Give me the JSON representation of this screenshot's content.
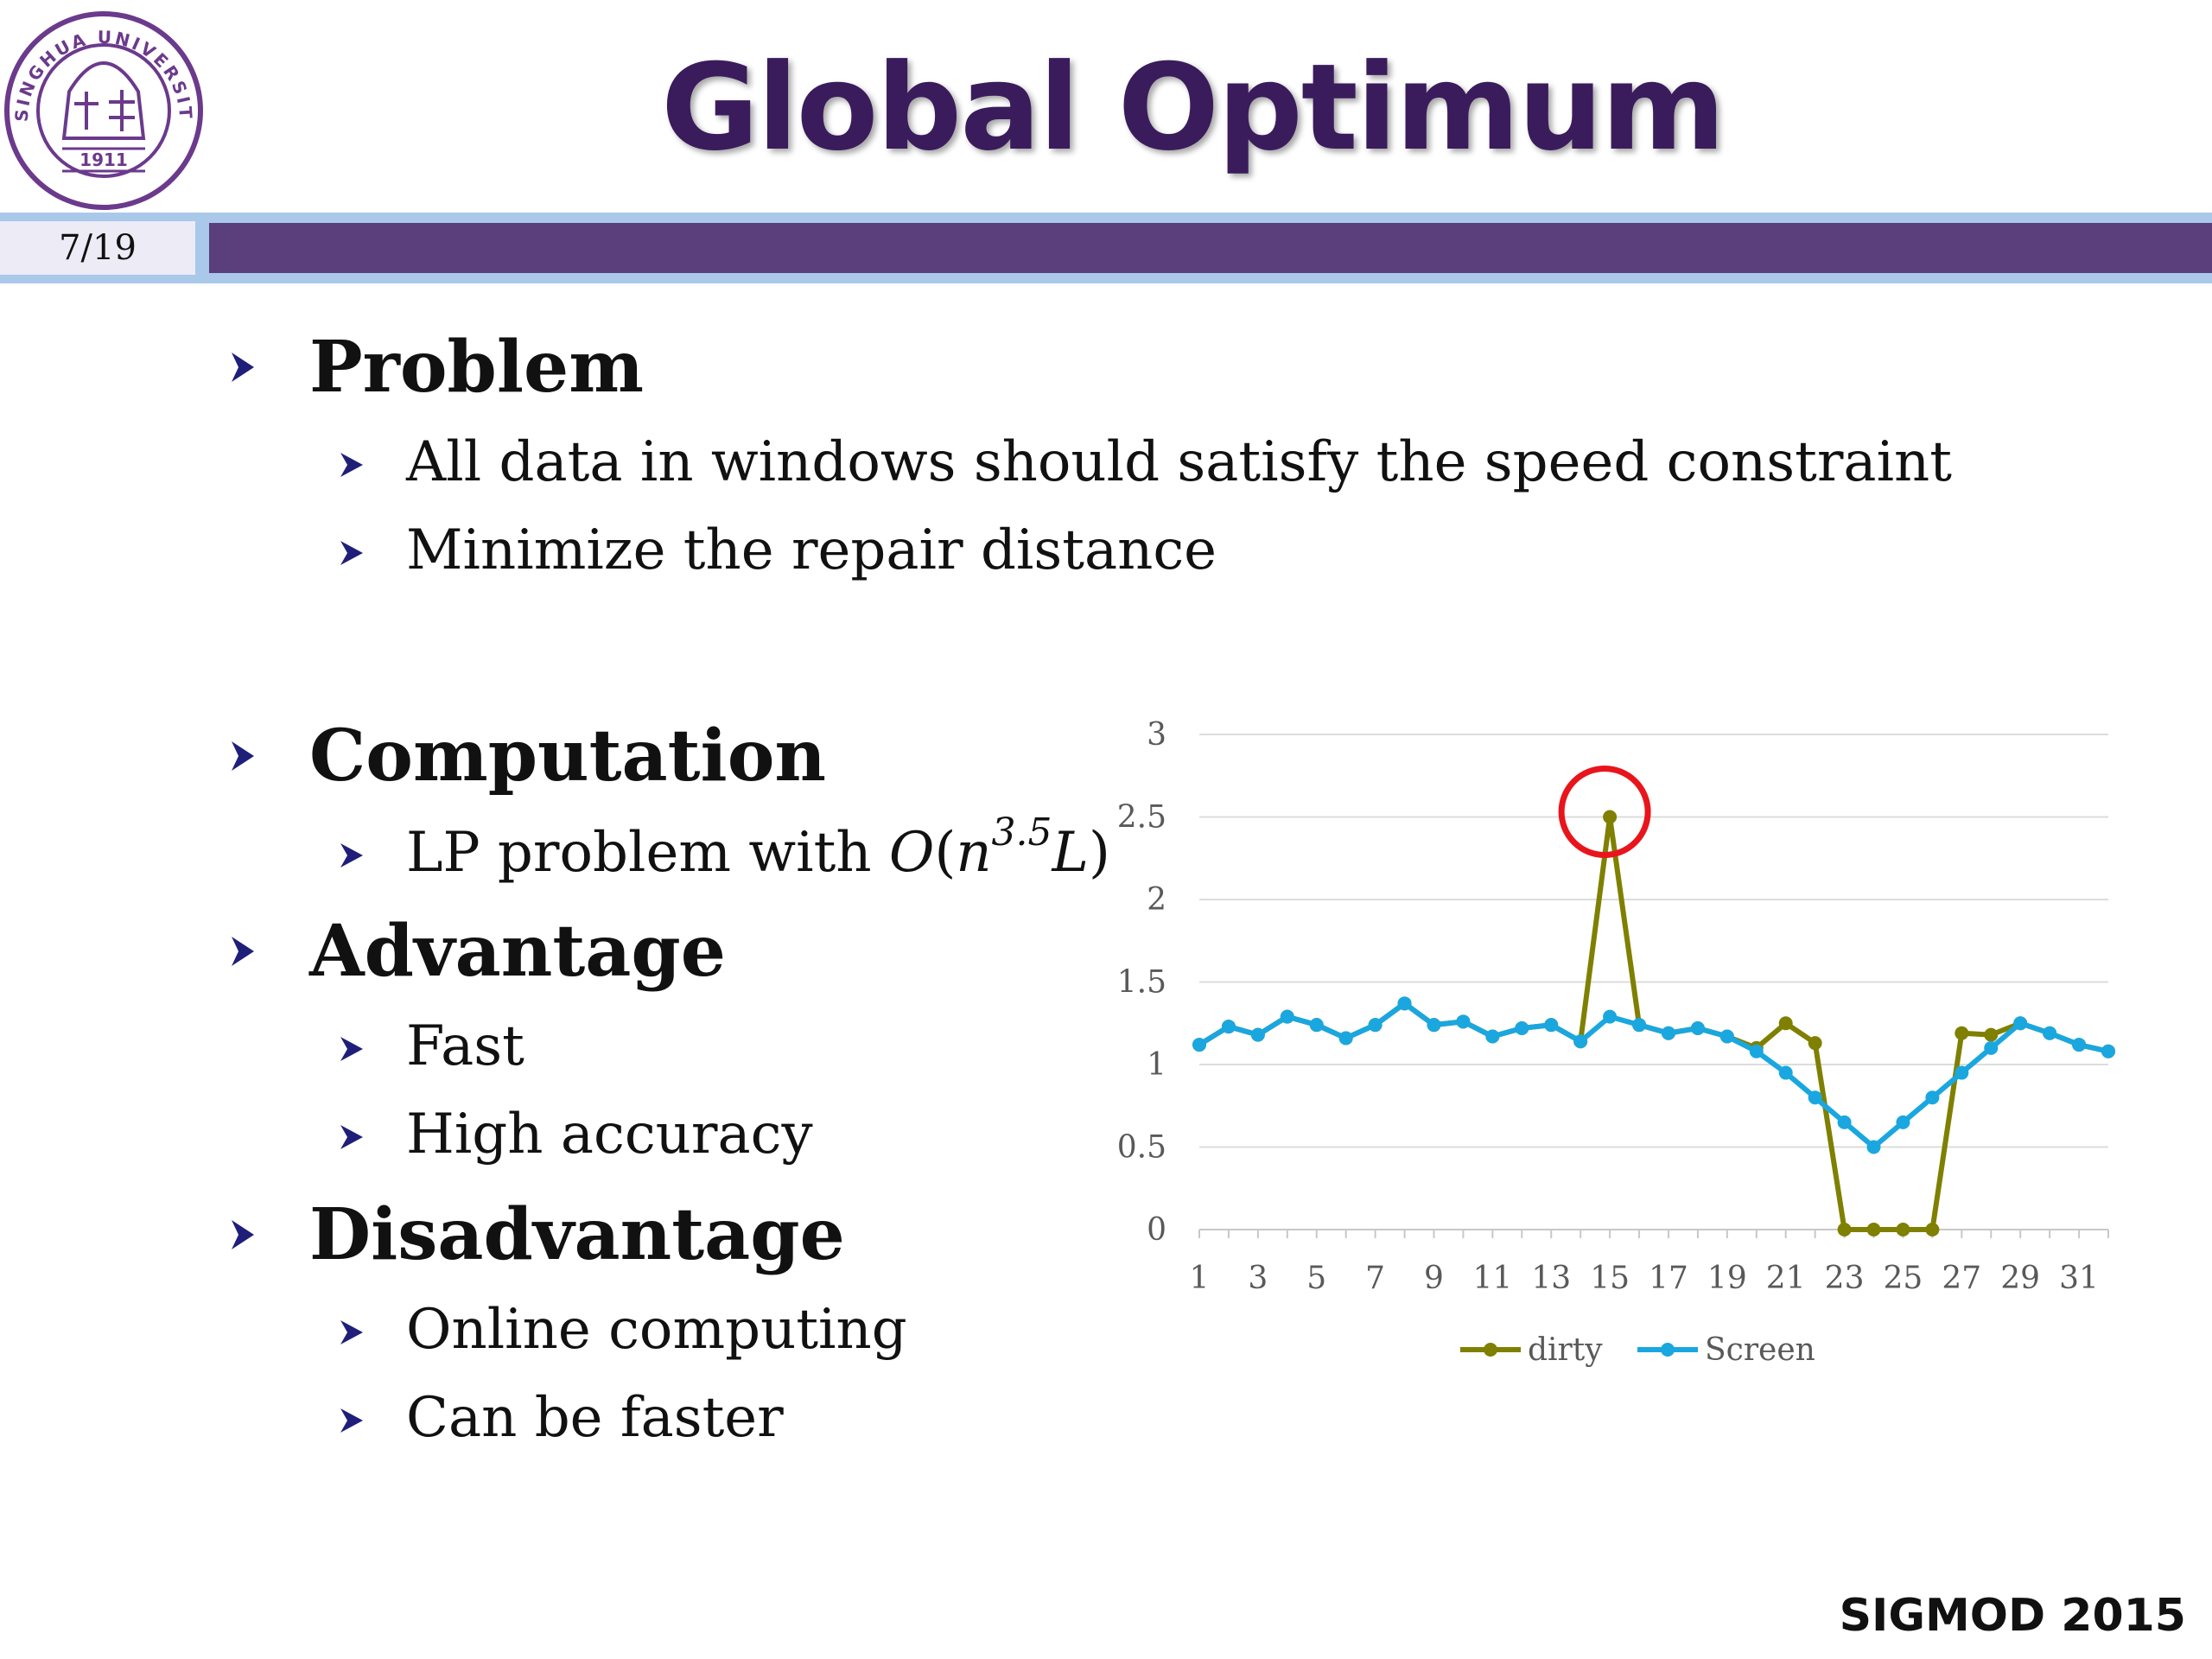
{
  "slide": {
    "title": "Global Optimum",
    "page_number": "7/19",
    "footer": "SIGMOD 2015",
    "logo": {
      "name": "tsinghua-university-seal",
      "text_top": "TSINGHUA UNIVERSITY",
      "text_year": "1911",
      "color": "#6b3a8c"
    }
  },
  "colors": {
    "title": "#3a1c5c",
    "header_bar_dark": "#5a3f7c",
    "header_bar_light": "#a9c8ea",
    "bullet_arrow": "#1f1f7a",
    "highlight_circle": "#e8151c"
  },
  "sections": [
    {
      "heading": "Problem",
      "items": [
        "All data in windows should satisfy the speed constraint",
        "Minimize the repair distance"
      ]
    },
    {
      "heading": "Computation",
      "items": [
        {
          "prefix": "LP problem with ",
          "math": "O",
          "paren_open": "(",
          "var": "n",
          "sup": "3.5",
          "var2": "L",
          "paren_close": ")"
        }
      ]
    },
    {
      "heading": "Advantage",
      "items": [
        "Fast",
        "High accuracy"
      ]
    },
    {
      "heading": "Disadvantage",
      "items": [
        "Online computing",
        "Can be faster"
      ]
    }
  ],
  "chart_data": {
    "type": "line",
    "title": "",
    "xlabel": "",
    "ylabel": "",
    "x": [
      1,
      2,
      3,
      4,
      5,
      6,
      7,
      8,
      9,
      10,
      11,
      12,
      13,
      14,
      15,
      16,
      17,
      18,
      19,
      20,
      21,
      22,
      23,
      24,
      25,
      26,
      27,
      28,
      29,
      30,
      31,
      32
    ],
    "x_tick_labels": [
      "1",
      "3",
      "5",
      "7",
      "9",
      "11",
      "13",
      "15",
      "17",
      "19",
      "21",
      "23",
      "25",
      "27",
      "29",
      "31"
    ],
    "y_tick_labels": [
      "0",
      "0.5",
      "1",
      "1.5",
      "2",
      "2.5",
      "3"
    ],
    "ylim": [
      0,
      3
    ],
    "grid": true,
    "legend_position": "bottom",
    "series": [
      {
        "name": "dirty",
        "color": "#7f8000",
        "values": [
          1.12,
          1.23,
          1.18,
          1.29,
          1.24,
          1.16,
          1.24,
          1.37,
          1.24,
          1.26,
          1.17,
          1.22,
          1.24,
          1.14,
          2.5,
          1.24,
          1.19,
          1.22,
          1.17,
          1.1,
          1.25,
          1.13,
          0,
          0,
          0,
          0,
          1.19,
          1.18,
          1.25,
          1.19,
          1.12,
          1.08
        ]
      },
      {
        "name": "Screen",
        "color": "#1aa7e0",
        "values": [
          1.12,
          1.23,
          1.18,
          1.29,
          1.24,
          1.16,
          1.24,
          1.37,
          1.24,
          1.26,
          1.17,
          1.22,
          1.24,
          1.14,
          1.29,
          1.24,
          1.19,
          1.22,
          1.17,
          1.08,
          0.95,
          0.8,
          0.65,
          0.5,
          0.65,
          0.8,
          0.95,
          1.1,
          1.25,
          1.19,
          1.12,
          1.08
        ]
      }
    ],
    "annotation": {
      "type": "circle",
      "x": 15,
      "y": 2.5
    }
  }
}
